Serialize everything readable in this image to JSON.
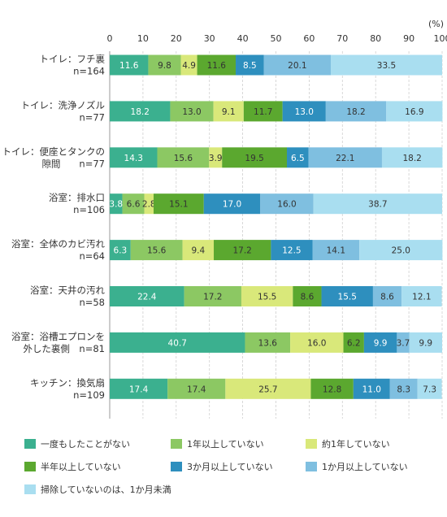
{
  "chart_data": {
    "type": "bar",
    "orientation": "horizontal",
    "stacked": true,
    "x_unit": "(%)",
    "xlim": [
      0,
      100
    ],
    "x_ticks": [
      "0",
      "10",
      "20",
      "30",
      "40",
      "50",
      "60",
      "70",
      "80",
      "90",
      "100"
    ],
    "grid": true,
    "legend_position": "bottom",
    "categories": [
      {
        "label": [
          "トイレ：フチ裏",
          "n=164"
        ]
      },
      {
        "label": [
          "トイレ：洗浄ノズル",
          "n=77"
        ]
      },
      {
        "label": [
          "トイレ：便座とタンクの",
          "隙間　　n=77"
        ]
      },
      {
        "label": [
          "浴室：排水口",
          "n=106"
        ]
      },
      {
        "label": [
          "浴室：全体のカビ汚れ",
          "n=64"
        ]
      },
      {
        "label": [
          "浴室：天井の汚れ",
          "n=58"
        ]
      },
      {
        "label": [
          "浴室：浴槽エプロンを",
          "外した裏側　n=81"
        ]
      },
      {
        "label": [
          "キッチン：換気扇",
          "n=109"
        ]
      }
    ],
    "series": [
      {
        "name": "一度もしたことがない",
        "color": "#3bb08f",
        "label_color": "#ffffff",
        "values": [
          11.6,
          18.2,
          14.3,
          3.8,
          6.3,
          22.4,
          40.7,
          17.4
        ]
      },
      {
        "name": "1年以上していない",
        "color": "#8cc863",
        "label_color": "#333333",
        "values": [
          9.8,
          13.0,
          15.6,
          6.6,
          15.6,
          17.2,
          13.6,
          17.4
        ]
      },
      {
        "name": "約1年していない",
        "color": "#d9e87a",
        "label_color": "#333333",
        "values": [
          4.9,
          9.1,
          3.9,
          2.8,
          9.4,
          15.5,
          16.0,
          25.7
        ]
      },
      {
        "name": "半年以上していない",
        "color": "#5ba82f",
        "label_color": "#333333",
        "values": [
          11.6,
          11.7,
          19.5,
          15.1,
          17.2,
          8.6,
          6.2,
          12.8
        ]
      },
      {
        "name": "3か月以上していない",
        "color": "#2e8fbe",
        "label_color": "#ffffff",
        "values": [
          8.5,
          13.0,
          6.5,
          17.0,
          12.5,
          15.5,
          9.9,
          11.0
        ]
      },
      {
        "name": "1か月以上していない",
        "color": "#7fbfe0",
        "label_color": "#333333",
        "values": [
          20.1,
          18.2,
          22.1,
          16.0,
          14.1,
          8.6,
          3.7,
          8.3
        ]
      },
      {
        "name": "掃除していないのは、1か月未満",
        "color": "#a9def0",
        "label_color": "#333333",
        "values": [
          33.5,
          16.9,
          18.2,
          38.7,
          25.0,
          12.1,
          9.9,
          7.3
        ]
      }
    ]
  }
}
